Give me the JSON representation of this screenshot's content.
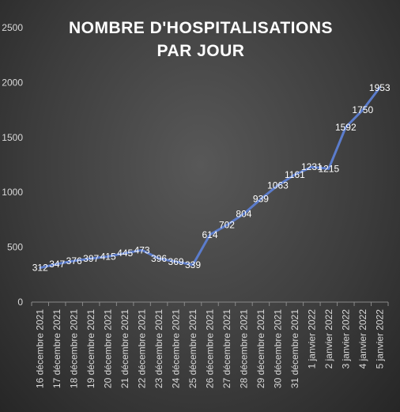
{
  "chart_data": {
    "type": "line",
    "title": "NOMBRE D'HOSPITALISATIONS PAR JOUR",
    "title_lines": [
      "NOMBRE D'HOSPITALISATIONS",
      "PAR JOUR"
    ],
    "xlabel": "",
    "ylabel": "",
    "ylim": [
      0,
      2500
    ],
    "yticks": [
      0,
      500,
      1000,
      1500,
      2000,
      2500
    ],
    "grid": false,
    "legend": "none",
    "line_color": "#5b7ccc",
    "categories": [
      "16 décembre 2021",
      "17 décembre 2021",
      "18 décembre 2021",
      "19 décembre 2021",
      "20 décembre 2021",
      "21 décembre 2021",
      "22 décembre 2021",
      "23 décembre 2021",
      "24 décembre 2021",
      "25 décembre 2021",
      "26 décembre 2021",
      "27 décembre 2021",
      "28 décembre 2021",
      "29 décembre 2021",
      "30 décembre 2021",
      "31 décembre 2021",
      "1 janvier 2022",
      "2 janvier 2022",
      "3 janvier 2022",
      "4 janvier 2022",
      "5 janvier 2022"
    ],
    "dates": [
      "2021-12-16",
      "2021-12-17",
      "2021-12-18",
      "2021-12-19",
      "2021-12-20",
      "2021-12-21",
      "2021-12-22",
      "2021-12-23",
      "2021-12-24",
      "2021-12-25",
      "2021-12-26",
      "2021-12-27",
      "2021-12-28",
      "2021-12-29",
      "2021-12-30",
      "2021-12-31",
      "2022-01-01",
      "2022-01-02",
      "2022-01-03",
      "2022-01-04",
      "2022-01-05"
    ],
    "series": [
      {
        "values": [
          312,
          347,
          376,
          397,
          415,
          445,
          473,
          396,
          369,
          339,
          614,
          702,
          804,
          939,
          1063,
          1161,
          1231,
          1215,
          1592,
          1750,
          1953
        ]
      }
    ]
  }
}
